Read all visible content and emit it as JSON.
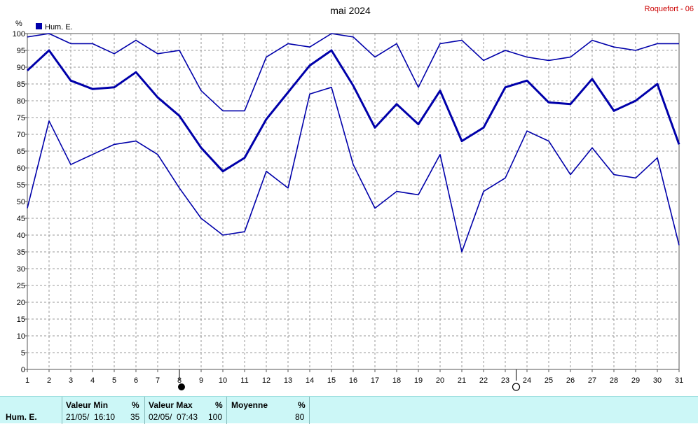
{
  "chart_data": {
    "type": "line",
    "title": "mai 2024",
    "station": "Roquefort - 06",
    "ylabel": "%",
    "legend": {
      "label": "Hum. E.",
      "color": "#0000aa",
      "placement": "top-left"
    },
    "ylim": [
      0,
      100
    ],
    "yticks": [
      0,
      5,
      10,
      15,
      20,
      25,
      30,
      35,
      40,
      45,
      50,
      55,
      60,
      65,
      70,
      75,
      80,
      85,
      90,
      95,
      100
    ],
    "x": [
      1,
      2,
      3,
      4,
      5,
      6,
      7,
      8,
      9,
      10,
      11,
      12,
      13,
      14,
      15,
      16,
      17,
      18,
      19,
      20,
      21,
      22,
      23,
      24,
      25,
      26,
      27,
      28,
      29,
      30,
      31
    ],
    "series": [
      {
        "role": "max",
        "values": [
          99,
          100,
          97,
          97,
          94,
          98,
          94,
          95,
          83,
          77,
          77,
          93,
          97,
          96,
          100,
          99,
          93,
          97,
          84,
          97,
          98,
          92,
          95,
          93,
          92,
          93,
          98,
          96,
          95,
          97,
          97
        ]
      },
      {
        "role": "mean",
        "values": [
          89,
          95,
          86,
          83.5,
          84,
          88.5,
          81,
          75.5,
          66,
          59,
          63,
          74.5,
          82.5,
          90.5,
          95,
          84.5,
          72,
          79,
          73,
          83,
          68,
          72,
          84,
          86,
          79.5,
          79,
          86.5,
          77,
          80,
          85,
          67
        ]
      },
      {
        "role": "min",
        "values": [
          48,
          74,
          61,
          64,
          67,
          68,
          64,
          54,
          45,
          40,
          41,
          59,
          54,
          82,
          84,
          61,
          48,
          53,
          52,
          64,
          35,
          53,
          57,
          71,
          68,
          58,
          66,
          58,
          57,
          63,
          37
        ]
      }
    ],
    "moon_phases": [
      {
        "day": 8,
        "phase": "new"
      },
      {
        "day": 23.5,
        "phase": "full"
      }
    ],
    "grid": true
  },
  "stats": {
    "variable": "Hum. E.",
    "min": {
      "header": "Valeur Min",
      "unit": "%",
      "datetime": "21/05/  16:10",
      "value": "35"
    },
    "max": {
      "header": "Valeur Max",
      "unit": "%",
      "datetime": "02/05/  07:43",
      "value": "100"
    },
    "mean": {
      "header": "Moyenne",
      "unit": "%",
      "value": "80"
    }
  }
}
